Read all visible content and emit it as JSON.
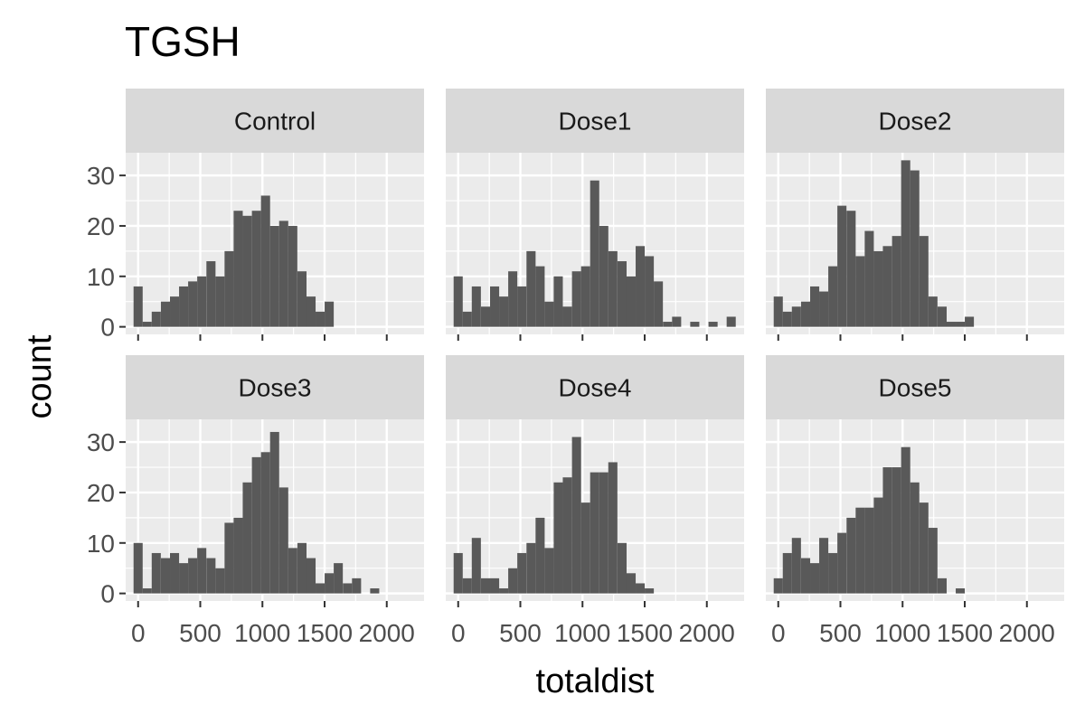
{
  "chart_data": {
    "type": "bar",
    "title": "TGSH",
    "xlabel": "totaldist",
    "ylabel": "count",
    "xlim": [
      -100,
      2300
    ],
    "ylim": [
      -1.5,
      34.5
    ],
    "x_ticks": [
      0,
      500,
      1000,
      1500,
      2000
    ],
    "x_tick_labels": [
      "0",
      "500",
      "1000",
      "1500",
      "2000"
    ],
    "y_ticks": [
      0,
      10,
      20,
      30
    ],
    "y_tick_labels": [
      "0",
      "10",
      "20",
      "30"
    ],
    "grid": true,
    "bin_width": 73.2,
    "bar_color": "#595959",
    "panel_background": "#ebebeb",
    "strip_background": "#d9d9d9",
    "panels": [
      {
        "name": "Control",
        "bins": [
          {
            "x": 0,
            "count": 8
          },
          {
            "x": 73,
            "count": 1
          },
          {
            "x": 146,
            "count": 3
          },
          {
            "x": 220,
            "count": 5
          },
          {
            "x": 293,
            "count": 6
          },
          {
            "x": 366,
            "count": 8
          },
          {
            "x": 439,
            "count": 9
          },
          {
            "x": 512,
            "count": 10
          },
          {
            "x": 586,
            "count": 13
          },
          {
            "x": 659,
            "count": 10
          },
          {
            "x": 732,
            "count": 15
          },
          {
            "x": 805,
            "count": 23
          },
          {
            "x": 878,
            "count": 22
          },
          {
            "x": 952,
            "count": 23
          },
          {
            "x": 1025,
            "count": 26
          },
          {
            "x": 1098,
            "count": 20
          },
          {
            "x": 1171,
            "count": 21
          },
          {
            "x": 1244,
            "count": 20
          },
          {
            "x": 1318,
            "count": 11
          },
          {
            "x": 1391,
            "count": 6
          },
          {
            "x": 1464,
            "count": 3
          },
          {
            "x": 1537,
            "count": 5
          }
        ]
      },
      {
        "name": "Dose1",
        "bins": [
          {
            "x": 0,
            "count": 10
          },
          {
            "x": 73,
            "count": 3
          },
          {
            "x": 146,
            "count": 8
          },
          {
            "x": 220,
            "count": 4
          },
          {
            "x": 293,
            "count": 8
          },
          {
            "x": 366,
            "count": 6
          },
          {
            "x": 439,
            "count": 11
          },
          {
            "x": 512,
            "count": 8
          },
          {
            "x": 586,
            "count": 15
          },
          {
            "x": 659,
            "count": 12
          },
          {
            "x": 732,
            "count": 5
          },
          {
            "x": 805,
            "count": 10
          },
          {
            "x": 878,
            "count": 4
          },
          {
            "x": 952,
            "count": 11
          },
          {
            "x": 1025,
            "count": 12
          },
          {
            "x": 1098,
            "count": 29
          },
          {
            "x": 1171,
            "count": 20
          },
          {
            "x": 1244,
            "count": 15
          },
          {
            "x": 1318,
            "count": 13
          },
          {
            "x": 1391,
            "count": 10
          },
          {
            "x": 1464,
            "count": 16
          },
          {
            "x": 1537,
            "count": 14
          },
          {
            "x": 1610,
            "count": 9
          },
          {
            "x": 1684,
            "count": 1
          },
          {
            "x": 1757,
            "count": 2
          },
          {
            "x": 1903,
            "count": 1
          },
          {
            "x": 2050,
            "count": 1
          },
          {
            "x": 2196,
            "count": 2
          }
        ]
      },
      {
        "name": "Dose2",
        "bins": [
          {
            "x": 0,
            "count": 6
          },
          {
            "x": 73,
            "count": 3
          },
          {
            "x": 146,
            "count": 4
          },
          {
            "x": 220,
            "count": 5
          },
          {
            "x": 293,
            "count": 8
          },
          {
            "x": 366,
            "count": 7
          },
          {
            "x": 439,
            "count": 12
          },
          {
            "x": 512,
            "count": 24
          },
          {
            "x": 586,
            "count": 23
          },
          {
            "x": 659,
            "count": 14
          },
          {
            "x": 732,
            "count": 19
          },
          {
            "x": 805,
            "count": 15
          },
          {
            "x": 878,
            "count": 16
          },
          {
            "x": 952,
            "count": 18
          },
          {
            "x": 1025,
            "count": 33
          },
          {
            "x": 1098,
            "count": 31
          },
          {
            "x": 1171,
            "count": 18
          },
          {
            "x": 1244,
            "count": 6
          },
          {
            "x": 1318,
            "count": 4
          },
          {
            "x": 1391,
            "count": 1
          },
          {
            "x": 1464,
            "count": 1
          },
          {
            "x": 1537,
            "count": 2
          }
        ]
      },
      {
        "name": "Dose3",
        "bins": [
          {
            "x": 0,
            "count": 10
          },
          {
            "x": 73,
            "count": 1
          },
          {
            "x": 146,
            "count": 8
          },
          {
            "x": 220,
            "count": 7
          },
          {
            "x": 293,
            "count": 8
          },
          {
            "x": 366,
            "count": 6
          },
          {
            "x": 439,
            "count": 7
          },
          {
            "x": 512,
            "count": 9
          },
          {
            "x": 586,
            "count": 7
          },
          {
            "x": 659,
            "count": 5
          },
          {
            "x": 732,
            "count": 14
          },
          {
            "x": 805,
            "count": 15
          },
          {
            "x": 878,
            "count": 22
          },
          {
            "x": 952,
            "count": 27
          },
          {
            "x": 1025,
            "count": 28
          },
          {
            "x": 1098,
            "count": 32
          },
          {
            "x": 1171,
            "count": 21
          },
          {
            "x": 1244,
            "count": 9
          },
          {
            "x": 1318,
            "count": 10
          },
          {
            "x": 1391,
            "count": 7
          },
          {
            "x": 1464,
            "count": 2
          },
          {
            "x": 1537,
            "count": 4
          },
          {
            "x": 1610,
            "count": 6
          },
          {
            "x": 1684,
            "count": 2
          },
          {
            "x": 1757,
            "count": 3
          },
          {
            "x": 1903,
            "count": 1
          }
        ]
      },
      {
        "name": "Dose4",
        "bins": [
          {
            "x": 0,
            "count": 8
          },
          {
            "x": 73,
            "count": 3
          },
          {
            "x": 146,
            "count": 11
          },
          {
            "x": 220,
            "count": 3
          },
          {
            "x": 293,
            "count": 3
          },
          {
            "x": 366,
            "count": 1
          },
          {
            "x": 439,
            "count": 5
          },
          {
            "x": 512,
            "count": 8
          },
          {
            "x": 586,
            "count": 10
          },
          {
            "x": 659,
            "count": 15
          },
          {
            "x": 732,
            "count": 9
          },
          {
            "x": 805,
            "count": 22
          },
          {
            "x": 878,
            "count": 23
          },
          {
            "x": 952,
            "count": 31
          },
          {
            "x": 1025,
            "count": 18
          },
          {
            "x": 1098,
            "count": 24
          },
          {
            "x": 1171,
            "count": 24
          },
          {
            "x": 1244,
            "count": 26
          },
          {
            "x": 1318,
            "count": 10
          },
          {
            "x": 1391,
            "count": 4
          },
          {
            "x": 1464,
            "count": 2
          },
          {
            "x": 1537,
            "count": 1
          }
        ]
      },
      {
        "name": "Dose5",
        "bins": [
          {
            "x": 0,
            "count": 3
          },
          {
            "x": 73,
            "count": 8
          },
          {
            "x": 146,
            "count": 11
          },
          {
            "x": 220,
            "count": 7
          },
          {
            "x": 293,
            "count": 6
          },
          {
            "x": 366,
            "count": 11
          },
          {
            "x": 439,
            "count": 8
          },
          {
            "x": 512,
            "count": 12
          },
          {
            "x": 586,
            "count": 15
          },
          {
            "x": 659,
            "count": 17
          },
          {
            "x": 732,
            "count": 17
          },
          {
            "x": 805,
            "count": 19
          },
          {
            "x": 878,
            "count": 25
          },
          {
            "x": 952,
            "count": 25
          },
          {
            "x": 1025,
            "count": 29
          },
          {
            "x": 1098,
            "count": 22
          },
          {
            "x": 1171,
            "count": 18
          },
          {
            "x": 1244,
            "count": 13
          },
          {
            "x": 1318,
            "count": 3
          },
          {
            "x": 1464,
            "count": 1
          }
        ]
      }
    ]
  }
}
